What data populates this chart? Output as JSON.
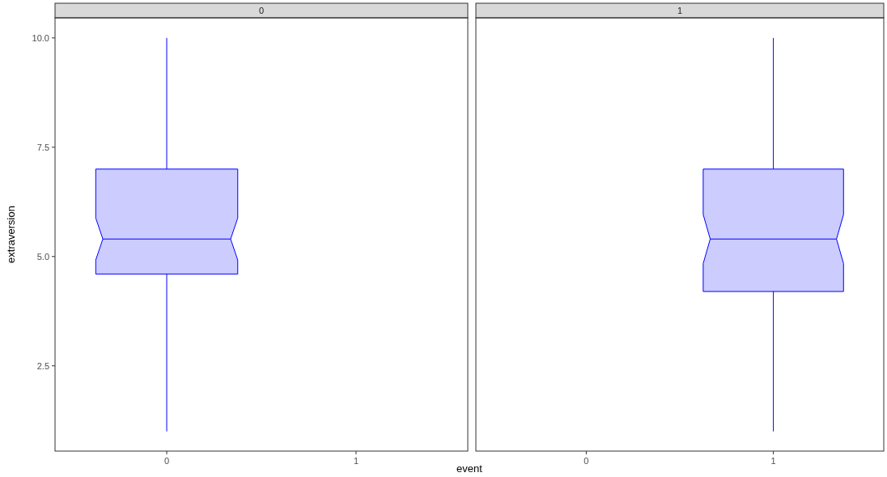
{
  "chart_data": [
    {
      "type": "box",
      "title": "0",
      "xlabel": "event",
      "ylabel": "extraversion",
      "categories": [
        "0",
        "1"
      ],
      "ylim": [
        0.55,
        10.46
      ],
      "yticks": [
        {
          "value": 2.5,
          "label": "2.5"
        },
        {
          "value": 5,
          "label": "5.0"
        },
        {
          "value": 7.5,
          "label": "7.5"
        },
        {
          "value": 10,
          "label": "10.0"
        }
      ],
      "color": "#0000ff",
      "boxes": [
        {
          "low": 1,
          "q1": 4.6,
          "median": 5.4,
          "q3": 7,
          "high": 10
        },
        null
      ]
    },
    {
      "type": "box",
      "title": "1",
      "categories": [
        "0",
        "1"
      ],
      "ylim": [
        0.55,
        10.46
      ],
      "tick_labels": "x",
      "color": "#0000ff",
      "boxes": [
        null,
        {
          "low": 1,
          "q1": 4.2,
          "median": 5.4,
          "q3": 7,
          "high": 10
        }
      ]
    }
  ]
}
